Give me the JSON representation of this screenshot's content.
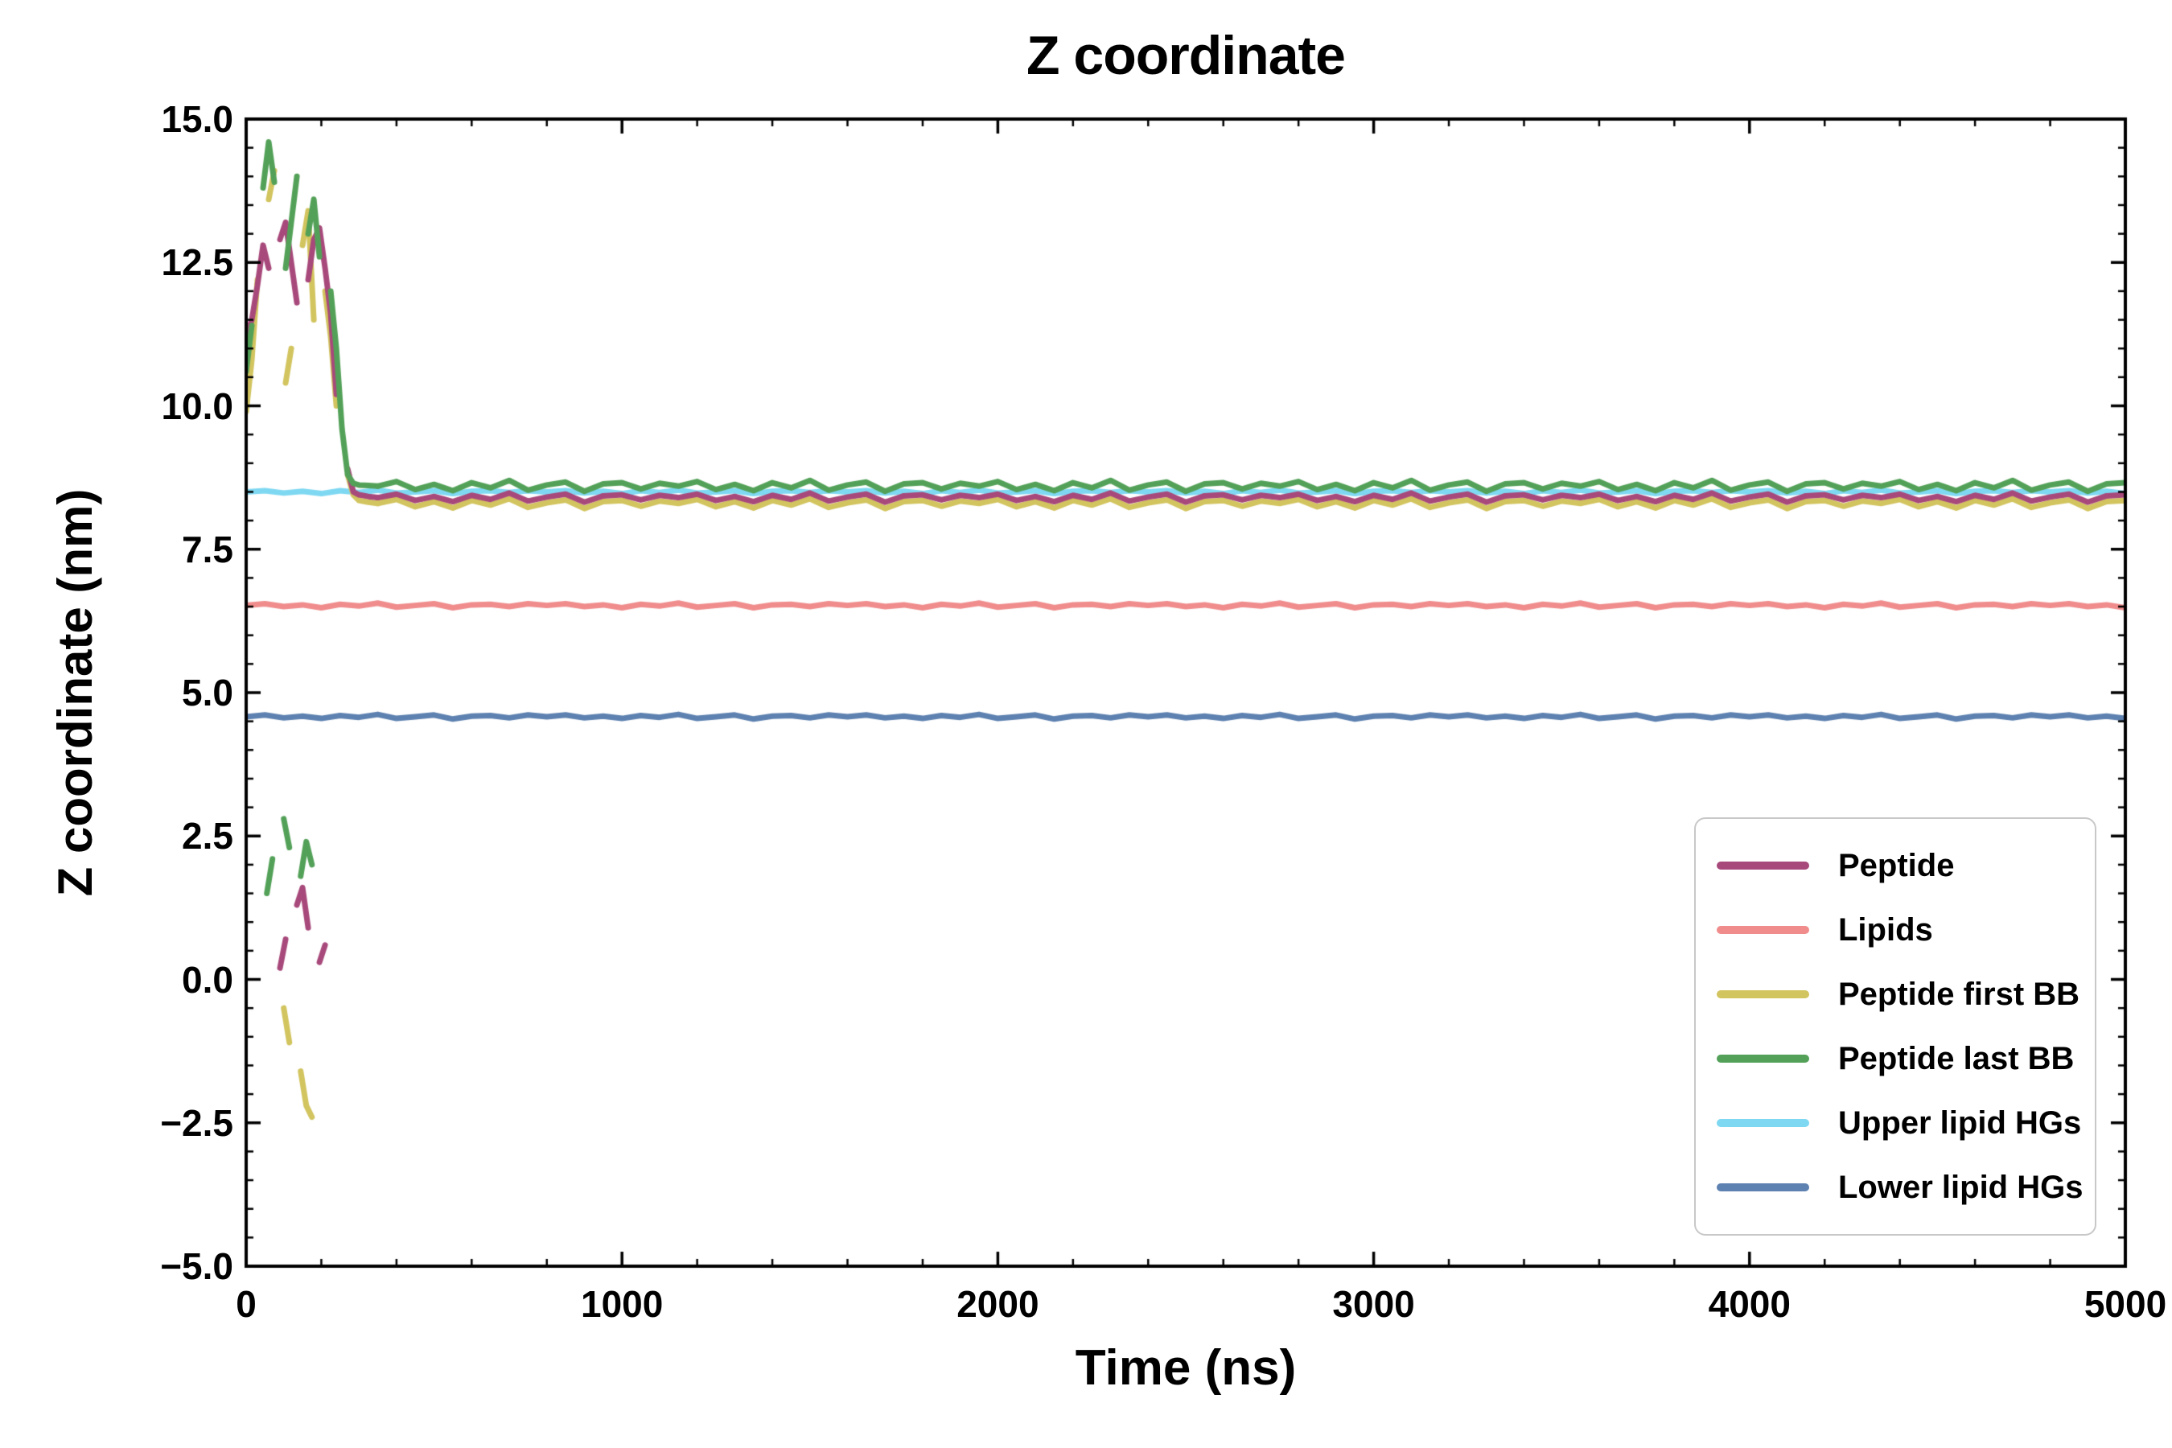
{
  "figure": {
    "background": "#ffffff",
    "frame_color": "#000000"
  },
  "chart_data": {
    "type": "line",
    "title": "Z coordinate",
    "xlabel": "Time (ns)",
    "ylabel": "Z coordinate (nm)",
    "xlim": [
      0,
      5000
    ],
    "ylim": [
      -5.0,
      15.0
    ],
    "x_ticks": [
      0,
      1000,
      2000,
      3000,
      4000,
      5000
    ],
    "x_tick_labels": [
      "0",
      "1000",
      "2000",
      "3000",
      "4000",
      "5000"
    ],
    "y_ticks": [
      -5.0,
      -2.5,
      0.0,
      2.5,
      5.0,
      7.5,
      10.0,
      12.5,
      15.0
    ],
    "y_tick_labels": [
      "−5.0",
      "−2.5",
      "0.0",
      "2.5",
      "5.0",
      "7.5",
      "10.0",
      "12.5",
      "15.0"
    ],
    "x_minor_step": 200,
    "y_minor_step": 0.5,
    "grid": false,
    "legend_position": "lower right",
    "draw_order": [
      "Lower lipid HGs",
      "Upper lipid HGs",
      "Lipids",
      "Peptide first BB",
      "Peptide",
      "Peptide last BB"
    ],
    "series": [
      {
        "name": "Peptide",
        "color": "#a8497b",
        "linewidth": 7,
        "segments": [
          {
            "x": [
              0,
              15,
              30,
              45,
              60,
              75,
              90,
              105,
              120,
              135,
              150,
              165,
              180,
              195,
              210,
              225,
              240,
              255,
              270,
              285,
              300,
              325,
              350
            ],
            "y": [
              11.2,
              11.5,
              12.1,
              12.8,
              12.4,
              null,
              12.9,
              13.2,
              12.5,
              11.8,
              null,
              12.2,
              12.9,
              13.1,
              12.4,
              11.6,
              10.2,
              null,
              8.9,
              8.5,
              8.45,
              8.42,
              8.4
            ]
          },
          {
            "x_start": 350,
            "x_step": 50,
            "y": [
              8.4,
              8.46,
              8.35,
              8.42,
              8.33,
              8.44,
              8.37,
              8.48,
              8.34,
              8.41,
              8.46,
              8.32,
              8.43,
              8.45,
              8.36,
              8.44,
              8.4,
              8.46,
              8.35,
              8.42,
              8.33,
              8.44,
              8.37,
              8.48,
              8.34,
              8.41,
              8.46,
              8.32,
              8.43,
              8.45,
              8.36,
              8.44,
              8.4,
              8.46,
              8.35,
              8.42,
              8.33,
              8.44,
              8.37,
              8.48,
              8.34,
              8.41,
              8.46,
              8.32,
              8.43,
              8.45,
              8.36,
              8.44,
              8.4,
              8.46,
              8.35,
              8.42,
              8.33,
              8.44,
              8.37,
              8.48,
              8.34,
              8.41,
              8.46,
              8.32,
              8.43,
              8.45,
              8.36,
              8.44,
              8.4,
              8.46,
              8.35,
              8.42,
              8.33,
              8.44,
              8.37,
              8.48,
              8.34,
              8.41,
              8.46,
              8.32,
              8.43,
              8.45,
              8.36,
              8.44,
              8.4,
              8.46,
              8.35,
              8.42,
              8.33,
              8.44,
              8.37,
              8.48,
              8.34,
              8.41,
              8.46,
              8.32,
              8.43,
              8.45
            ]
          },
          {
            "x": [
              90,
              105,
              120,
              135,
              150,
              165,
              180,
              195,
              210
            ],
            "y": [
              0.2,
              0.7,
              null,
              1.3,
              1.6,
              0.9,
              null,
              0.3,
              0.6
            ]
          }
        ]
      },
      {
        "name": "Lipids",
        "color": "#f08c8c",
        "linewidth": 7,
        "segments": [
          {
            "x_start": 0,
            "x_step": 50,
            "y": [
              6.52,
              6.55,
              6.5,
              6.53,
              6.48,
              6.54,
              6.51,
              6.56,
              6.49,
              6.52,
              6.55,
              6.48,
              6.53,
              6.54,
              6.5,
              6.55,
              6.52,
              6.55,
              6.5,
              6.53,
              6.48,
              6.54,
              6.51,
              6.56,
              6.49,
              6.52,
              6.55,
              6.48,
              6.53,
              6.54,
              6.5,
              6.55,
              6.52,
              6.55,
              6.5,
              6.53,
              6.48,
              6.54,
              6.51,
              6.56,
              6.49,
              6.52,
              6.55,
              6.48,
              6.53,
              6.54,
              6.5,
              6.55,
              6.52,
              6.55,
              6.5,
              6.53,
              6.48,
              6.54,
              6.51,
              6.56,
              6.49,
              6.52,
              6.55,
              6.48,
              6.53,
              6.54,
              6.5,
              6.55,
              6.52,
              6.55,
              6.5,
              6.53,
              6.48,
              6.54,
              6.51,
              6.56,
              6.49,
              6.52,
              6.55,
              6.48,
              6.53,
              6.54,
              6.5,
              6.55,
              6.52,
              6.55,
              6.5,
              6.53,
              6.48,
              6.54,
              6.51,
              6.56,
              6.49,
              6.52,
              6.55,
              6.48,
              6.53,
              6.54,
              6.5,
              6.55,
              6.52,
              6.55,
              6.5,
              6.53,
              6.48
            ]
          }
        ]
      },
      {
        "name": "Peptide first BB",
        "color": "#d2c45e",
        "linewidth": 7,
        "segments": [
          {
            "x": [
              0,
              15,
              30,
              45,
              60,
              75,
              90,
              105,
              120,
              135,
              150,
              165,
              180,
              195,
              210,
              225,
              240,
              255,
              270,
              285,
              300,
              325,
              350
            ],
            "y": [
              9.9,
              10.8,
              12.2,
              null,
              13.6,
              14.1,
              null,
              10.4,
              11.0,
              null,
              12.8,
              13.4,
              11.5,
              null,
              12.0,
              11.2,
              10.0,
              null,
              8.8,
              8.45,
              8.35,
              8.32,
              8.3
            ]
          },
          {
            "x_start": 350,
            "x_step": 50,
            "y": [
              8.3,
              8.37,
              8.24,
              8.33,
              8.22,
              8.35,
              8.27,
              8.38,
              8.23,
              8.31,
              8.36,
              8.21,
              8.33,
              8.35,
              8.25,
              8.34,
              8.3,
              8.37,
              8.24,
              8.33,
              8.22,
              8.35,
              8.27,
              8.38,
              8.23,
              8.31,
              8.36,
              8.21,
              8.33,
              8.35,
              8.25,
              8.34,
              8.3,
              8.37,
              8.24,
              8.33,
              8.22,
              8.35,
              8.27,
              8.38,
              8.23,
              8.31,
              8.36,
              8.21,
              8.33,
              8.35,
              8.25,
              8.34,
              8.3,
              8.37,
              8.24,
              8.33,
              8.22,
              8.35,
              8.27,
              8.38,
              8.23,
              8.31,
              8.36,
              8.21,
              8.33,
              8.35,
              8.25,
              8.34,
              8.3,
              8.37,
              8.24,
              8.33,
              8.22,
              8.35,
              8.27,
              8.38,
              8.23,
              8.31,
              8.36,
              8.21,
              8.33,
              8.35,
              8.25,
              8.34,
              8.3,
              8.37,
              8.24,
              8.33,
              8.22,
              8.35,
              8.27,
              8.38,
              8.23,
              8.31,
              8.36,
              8.21,
              8.33,
              8.35
            ]
          },
          {
            "x": [
              100,
              115,
              130,
              145,
              160,
              175,
              190,
              205
            ],
            "y": [
              -0.5,
              -1.1,
              null,
              -1.6,
              -2.2,
              -2.4,
              null,
              -1.9
            ]
          }
        ]
      },
      {
        "name": "Peptide last BB",
        "color": "#53a158",
        "linewidth": 7,
        "segments": [
          {
            "x": [
              0,
              15,
              30,
              45,
              60,
              75,
              90,
              105,
              120,
              135,
              150,
              165,
              180,
              195,
              210,
              225,
              240,
              255,
              270,
              285,
              300,
              325,
              350
            ],
            "y": [
              10.6,
              11.4,
              null,
              13.8,
              14.6,
              13.9,
              null,
              12.4,
              13.2,
              14.0,
              null,
              13.0,
              13.6,
              12.6,
              null,
              12.0,
              11.0,
              9.6,
              8.8,
              8.65,
              8.62,
              8.61,
              8.6
            ]
          },
          {
            "x_start": 350,
            "x_step": 50,
            "y": [
              8.6,
              8.68,
              8.54,
              8.63,
              8.52,
              8.66,
              8.57,
              8.7,
              8.53,
              8.62,
              8.67,
              8.51,
              8.64,
              8.66,
              8.55,
              8.65,
              8.6,
              8.68,
              8.54,
              8.63,
              8.52,
              8.66,
              8.57,
              8.7,
              8.53,
              8.62,
              8.67,
              8.51,
              8.64,
              8.66,
              8.55,
              8.65,
              8.6,
              8.68,
              8.54,
              8.63,
              8.52,
              8.66,
              8.57,
              8.7,
              8.53,
              8.62,
              8.67,
              8.51,
              8.64,
              8.66,
              8.55,
              8.65,
              8.6,
              8.68,
              8.54,
              8.63,
              8.52,
              8.66,
              8.57,
              8.7,
              8.53,
              8.62,
              8.67,
              8.51,
              8.64,
              8.66,
              8.55,
              8.65,
              8.6,
              8.68,
              8.54,
              8.63,
              8.52,
              8.66,
              8.57,
              8.7,
              8.53,
              8.62,
              8.67,
              8.51,
              8.64,
              8.66,
              8.55,
              8.65,
              8.6,
              8.68,
              8.54,
              8.63,
              8.52,
              8.66,
              8.57,
              8.7,
              8.53,
              8.62,
              8.67,
              8.51,
              8.64,
              8.66
            ]
          },
          {
            "x": [
              55,
              70,
              85,
              100,
              115,
              130,
              145,
              160,
              175
            ],
            "y": [
              1.5,
              2.1,
              null,
              2.8,
              2.3,
              null,
              1.8,
              2.4,
              2.0
            ]
          }
        ]
      },
      {
        "name": "Upper lipid HGs",
        "color": "#7fd8f2",
        "linewidth": 7,
        "segments": [
          {
            "x_start": 0,
            "x_step": 50,
            "y": [
              8.5,
              8.52,
              8.48,
              8.51,
              8.47,
              8.52,
              8.49,
              8.53,
              8.48,
              8.5,
              8.52,
              8.47,
              8.51,
              8.52,
              8.49,
              8.52,
              8.5,
              8.52,
              8.48,
              8.51,
              8.47,
              8.52,
              8.49,
              8.53,
              8.48,
              8.5,
              8.52,
              8.47,
              8.51,
              8.52,
              8.49,
              8.52,
              8.5,
              8.52,
              8.48,
              8.51,
              8.47,
              8.52,
              8.49,
              8.53,
              8.48,
              8.5,
              8.52,
              8.47,
              8.51,
              8.52,
              8.49,
              8.52,
              8.5,
              8.52,
              8.48,
              8.51,
              8.47,
              8.52,
              8.49,
              8.53,
              8.48,
              8.5,
              8.52,
              8.47,
              8.51,
              8.52,
              8.49,
              8.52,
              8.5,
              8.52,
              8.48,
              8.51,
              8.47,
              8.52,
              8.49,
              8.53,
              8.48,
              8.5,
              8.52,
              8.47,
              8.51,
              8.52,
              8.49,
              8.52,
              8.5,
              8.52,
              8.48,
              8.51,
              8.47,
              8.52,
              8.49,
              8.53,
              8.48,
              8.5,
              8.52,
              8.47,
              8.51,
              8.52,
              8.49,
              8.52,
              8.5,
              8.52,
              8.48,
              8.51,
              8.47
            ]
          }
        ]
      },
      {
        "name": "Lower lipid HGs",
        "color": "#5d81b0",
        "linewidth": 7,
        "segments": [
          {
            "x_start": 0,
            "x_step": 50,
            "y": [
              4.58,
              4.61,
              4.56,
              4.59,
              4.55,
              4.6,
              4.57,
              4.62,
              4.55,
              4.58,
              4.61,
              4.54,
              4.59,
              4.6,
              4.56,
              4.61,
              4.58,
              4.61,
              4.56,
              4.59,
              4.55,
              4.6,
              4.57,
              4.62,
              4.55,
              4.58,
              4.61,
              4.54,
              4.59,
              4.6,
              4.56,
              4.61,
              4.58,
              4.61,
              4.56,
              4.59,
              4.55,
              4.6,
              4.57,
              4.62,
              4.55,
              4.58,
              4.61,
              4.54,
              4.59,
              4.6,
              4.56,
              4.61,
              4.58,
              4.61,
              4.56,
              4.59,
              4.55,
              4.6,
              4.57,
              4.62,
              4.55,
              4.58,
              4.61,
              4.54,
              4.59,
              4.6,
              4.56,
              4.61,
              4.58,
              4.61,
              4.56,
              4.59,
              4.55,
              4.6,
              4.57,
              4.62,
              4.55,
              4.58,
              4.61,
              4.54,
              4.59,
              4.6,
              4.56,
              4.61,
              4.58,
              4.61,
              4.56,
              4.59,
              4.55,
              4.6,
              4.57,
              4.62,
              4.55,
              4.58,
              4.61,
              4.54,
              4.59,
              4.6,
              4.56,
              4.61,
              4.58,
              4.61,
              4.56,
              4.59,
              4.55
            ]
          }
        ]
      }
    ]
  }
}
